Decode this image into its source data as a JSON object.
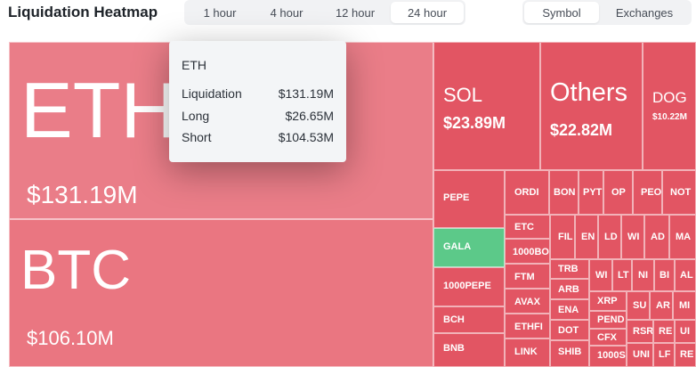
{
  "header": {
    "title": "Liquidation Heatmap"
  },
  "time_tabs": [
    {
      "label": "1 hour",
      "active": false
    },
    {
      "label": "4 hour",
      "active": false
    },
    {
      "label": "12 hour",
      "active": false
    },
    {
      "label": "24 hour",
      "active": true
    }
  ],
  "view_tabs": [
    {
      "label": "Symbol",
      "active": true
    },
    {
      "label": "Exchanges",
      "active": false
    }
  ],
  "tooltip": {
    "title": "ETH",
    "rows": [
      {
        "label": "Liquidation",
        "value": "$131.19M"
      },
      {
        "label": "Long",
        "value": "$26.65M"
      },
      {
        "label": "Short",
        "value": "$104.53M"
      }
    ]
  },
  "heatmap": {
    "eth": {
      "symbol": "ETH",
      "value": "$131.19M"
    },
    "btc": {
      "symbol": "BTC",
      "value": "$106.10M"
    },
    "sol": {
      "symbol": "SOL",
      "value": "$23.89M"
    },
    "others": {
      "symbol": "Others",
      "value": "$22.82M"
    },
    "doge": {
      "symbol": "DOG",
      "value": "$10.22M"
    },
    "small": [
      "ORDI",
      "BON",
      "PYT",
      "OP",
      "PEO",
      "NOT",
      "PEPE",
      "ETC",
      "FIL",
      "EN",
      "LD",
      "WI",
      "AD",
      "MA",
      "GALA",
      "1000BO",
      "TRB",
      "WI",
      "LT",
      "NI",
      "BI",
      "AL",
      "1000PEPE",
      "FTM",
      "ARB",
      "XRP",
      "SU",
      "AR",
      "MI",
      "AVAX",
      "ENA",
      "PEND",
      "BCH",
      "ETHFI",
      "DOT",
      "RSR",
      "RE",
      "UI",
      "CFX",
      "BNB",
      "LINK",
      "SHIB",
      "1000S",
      "UNI",
      "LF",
      "RE"
    ]
  },
  "colors": {
    "eth": "#ea7d88",
    "btc": "#ea7681",
    "red": "#e25563",
    "green": "#5cc989",
    "tooltip_bg": "#f3f5f7"
  }
}
